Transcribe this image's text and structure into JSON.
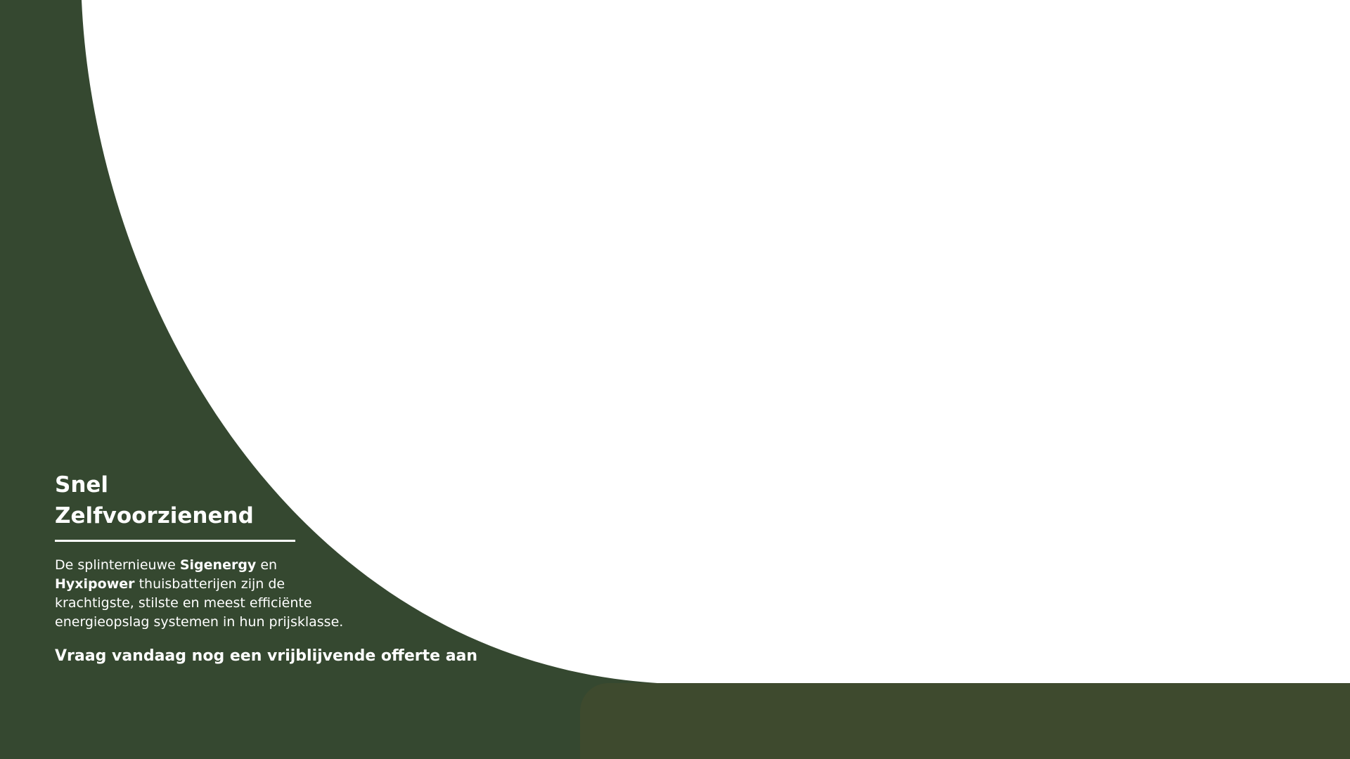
{
  "hero": {
    "title_line1": "Snel",
    "title_line2": "Zelfvoorzienend",
    "description": {
      "part1": "De splinternieuwe ",
      "brand1": "Sigenergy",
      "part2": " en ",
      "brand2": "Hyxipower",
      "part3": " thuisbatterijen zijn de krachtigste, stilste en meest efficiënte energieopslag systemen in hun prijsklasse."
    },
    "cta": "Vraag vandaag nog een vrijblijvende offerte aan"
  },
  "colors": {
    "primary_green": "#354830",
    "band_green": "#3e4a2e",
    "background": "#ffffff",
    "text": "#ffffff"
  }
}
